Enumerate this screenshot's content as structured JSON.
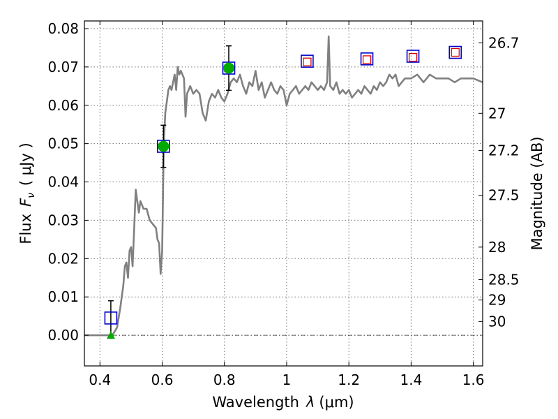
{
  "chart_data": {
    "type": "scatter",
    "xlabel": "Wavelength",
    "xlabel_symbol": "λ",
    "xlabel_unit": "(μm)",
    "ylabel": "Flux",
    "ylabel_symbol": "F",
    "ylabel_subscript": "ν",
    "ylabel_unit": "( μJy )",
    "ylabel_right": "Magnitude (AB)",
    "xlim": [
      0.35,
      1.63
    ],
    "ylim": [
      -0.008,
      0.082
    ],
    "grid": true,
    "x_ticks": [
      {
        "value": 0.4,
        "label": "0.4"
      },
      {
        "value": 0.6,
        "label": "0.6"
      },
      {
        "value": 0.8,
        "label": "0.8"
      },
      {
        "value": 1.0,
        "label": "1"
      },
      {
        "value": 1.2,
        "label": "1.2"
      },
      {
        "value": 1.4,
        "label": "1.4"
      },
      {
        "value": 1.6,
        "label": "1.6"
      }
    ],
    "y_ticks": [
      {
        "value": 0.0,
        "label": "0.00"
      },
      {
        "value": 0.01,
        "label": "0.01"
      },
      {
        "value": 0.02,
        "label": "0.02"
      },
      {
        "value": 0.03,
        "label": "0.03"
      },
      {
        "value": 0.04,
        "label": "0.04"
      },
      {
        "value": 0.05,
        "label": "0.05"
      },
      {
        "value": 0.06,
        "label": "0.06"
      },
      {
        "value": 0.07,
        "label": "0.07"
      },
      {
        "value": 0.08,
        "label": "0.08"
      }
    ],
    "right_ticks": [
      {
        "label": "26.7",
        "flux": 0.0763
      },
      {
        "label": "27",
        "flux": 0.0579
      },
      {
        "label": "27.2",
        "flux": 0.0482
      },
      {
        "label": "27.5",
        "flux": 0.0365
      },
      {
        "label": "28",
        "flux": 0.023
      },
      {
        "label": "28.5",
        "flux": 0.0145
      },
      {
        "label": "29",
        "flux": 0.0092
      },
      {
        "label": "30",
        "flux": 0.0036
      }
    ],
    "model_sed": {
      "color": "#808080",
      "points": [
        [
          0.35,
          0.0
        ],
        [
          0.44,
          0.0
        ],
        [
          0.455,
          0.002
        ],
        [
          0.465,
          0.007
        ],
        [
          0.475,
          0.013
        ],
        [
          0.48,
          0.018
        ],
        [
          0.485,
          0.019
        ],
        [
          0.49,
          0.015
        ],
        [
          0.495,
          0.022
        ],
        [
          0.5,
          0.023
        ],
        [
          0.505,
          0.018
        ],
        [
          0.51,
          0.028
        ],
        [
          0.515,
          0.038
        ],
        [
          0.52,
          0.035
        ],
        [
          0.525,
          0.032
        ],
        [
          0.53,
          0.035
        ],
        [
          0.54,
          0.033
        ],
        [
          0.55,
          0.033
        ],
        [
          0.56,
          0.03
        ],
        [
          0.57,
          0.029
        ],
        [
          0.58,
          0.028
        ],
        [
          0.585,
          0.025
        ],
        [
          0.59,
          0.024
        ],
        [
          0.595,
          0.016
        ],
        [
          0.6,
          0.022
        ],
        [
          0.605,
          0.05
        ],
        [
          0.61,
          0.058
        ],
        [
          0.62,
          0.064
        ],
        [
          0.625,
          0.065
        ],
        [
          0.63,
          0.064
        ],
        [
          0.64,
          0.068
        ],
        [
          0.645,
          0.064
        ],
        [
          0.65,
          0.07
        ],
        [
          0.655,
          0.068
        ],
        [
          0.66,
          0.069
        ],
        [
          0.67,
          0.067
        ],
        [
          0.675,
          0.057
        ],
        [
          0.68,
          0.063
        ],
        [
          0.69,
          0.065
        ],
        [
          0.7,
          0.063
        ],
        [
          0.71,
          0.064
        ],
        [
          0.72,
          0.063
        ],
        [
          0.73,
          0.058
        ],
        [
          0.74,
          0.056
        ],
        [
          0.75,
          0.061
        ],
        [
          0.76,
          0.063
        ],
        [
          0.77,
          0.062
        ],
        [
          0.78,
          0.064
        ],
        [
          0.79,
          0.062
        ],
        [
          0.8,
          0.061
        ],
        [
          0.81,
          0.063
        ],
        [
          0.82,
          0.066
        ],
        [
          0.83,
          0.067
        ],
        [
          0.84,
          0.066
        ],
        [
          0.85,
          0.068
        ],
        [
          0.86,
          0.065
        ],
        [
          0.87,
          0.063
        ],
        [
          0.88,
          0.066
        ],
        [
          0.89,
          0.065
        ],
        [
          0.9,
          0.069
        ],
        [
          0.91,
          0.064
        ],
        [
          0.92,
          0.066
        ],
        [
          0.93,
          0.062
        ],
        [
          0.94,
          0.064
        ],
        [
          0.95,
          0.066
        ],
        [
          0.96,
          0.064
        ],
        [
          0.97,
          0.063
        ],
        [
          0.98,
          0.065
        ],
        [
          0.99,
          0.064
        ],
        [
          1.0,
          0.06
        ],
        [
          1.01,
          0.063
        ],
        [
          1.02,
          0.064
        ],
        [
          1.03,
          0.065
        ],
        [
          1.04,
          0.063
        ],
        [
          1.05,
          0.064
        ],
        [
          1.06,
          0.065
        ],
        [
          1.07,
          0.064
        ],
        [
          1.08,
          0.066
        ],
        [
          1.09,
          0.065
        ],
        [
          1.1,
          0.064
        ],
        [
          1.11,
          0.065
        ],
        [
          1.12,
          0.064
        ],
        [
          1.13,
          0.066
        ],
        [
          1.135,
          0.078
        ],
        [
          1.14,
          0.065
        ],
        [
          1.15,
          0.064
        ],
        [
          1.16,
          0.066
        ],
        [
          1.17,
          0.063
        ],
        [
          1.18,
          0.064
        ],
        [
          1.19,
          0.063
        ],
        [
          1.2,
          0.064
        ],
        [
          1.21,
          0.062
        ],
        [
          1.22,
          0.063
        ],
        [
          1.23,
          0.064
        ],
        [
          1.24,
          0.063
        ],
        [
          1.25,
          0.065
        ],
        [
          1.26,
          0.064
        ],
        [
          1.27,
          0.063
        ],
        [
          1.28,
          0.065
        ],
        [
          1.29,
          0.064
        ],
        [
          1.3,
          0.066
        ],
        [
          1.31,
          0.065
        ],
        [
          1.32,
          0.066
        ],
        [
          1.33,
          0.068
        ],
        [
          1.34,
          0.067
        ],
        [
          1.35,
          0.068
        ],
        [
          1.36,
          0.065
        ],
        [
          1.37,
          0.066
        ],
        [
          1.38,
          0.067
        ],
        [
          1.4,
          0.067
        ],
        [
          1.42,
          0.068
        ],
        [
          1.44,
          0.066
        ],
        [
          1.46,
          0.068
        ],
        [
          1.48,
          0.067
        ],
        [
          1.5,
          0.067
        ],
        [
          1.52,
          0.067
        ],
        [
          1.54,
          0.066
        ],
        [
          1.56,
          0.067
        ],
        [
          1.58,
          0.067
        ],
        [
          1.6,
          0.067
        ],
        [
          1.63,
          0.066
        ]
      ]
    },
    "detections": {
      "color": "#00aa00",
      "points": [
        {
          "x": 0.604,
          "y": 0.0493,
          "err": 0.0055
        },
        {
          "x": 0.814,
          "y": 0.0697,
          "err": 0.0058
        }
      ]
    },
    "upper_limit": {
      "color": "#00aa00",
      "points": [
        {
          "x": 0.435,
          "y": 0.0
        }
      ]
    },
    "model_photometry": {
      "color": "#0000cc",
      "points": [
        {
          "x": 0.435,
          "y": 0.0045,
          "err": 0.0045
        },
        {
          "x": 0.604,
          "y": 0.0493
        },
        {
          "x": 0.814,
          "y": 0.0697
        },
        {
          "x": 1.066,
          "y": 0.0715
        },
        {
          "x": 1.258,
          "y": 0.0721
        },
        {
          "x": 1.406,
          "y": 0.0728
        },
        {
          "x": 1.542,
          "y": 0.0738
        }
      ]
    },
    "hst_ir_photometry": {
      "color": "#dd0000",
      "points": [
        {
          "x": 1.066,
          "y": 0.0713
        },
        {
          "x": 1.258,
          "y": 0.0719
        },
        {
          "x": 1.406,
          "y": 0.0725
        },
        {
          "x": 1.542,
          "y": 0.0738
        }
      ]
    }
  }
}
